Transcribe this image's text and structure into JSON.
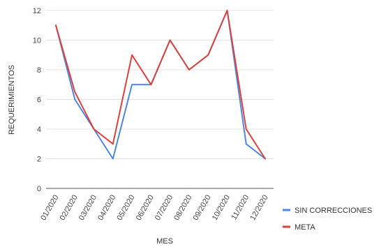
{
  "chart_data": {
    "type": "line",
    "title": "",
    "xlabel": "MES",
    "ylabel": "REQUERIMIENTOS",
    "ylim": [
      0,
      12
    ],
    "yticks": [
      0,
      2,
      4,
      6,
      8,
      10,
      12
    ],
    "grid": true,
    "legend_position": "bottom-right",
    "categories": [
      "01/2020",
      "02/2020",
      "03/2020",
      "04/2020",
      "05/2020",
      "06/2020",
      "07/2020",
      "08/2020",
      "09/2020",
      "10/2020",
      "11/2020",
      "12/2020"
    ],
    "series": [
      {
        "name": "SIN CORRECCIONES",
        "color": "#4a86e8",
        "values": [
          11,
          6,
          4,
          2,
          7,
          7,
          10,
          8,
          9,
          12,
          3,
          2
        ]
      },
      {
        "name": "META",
        "color": "#e0403a",
        "values": [
          11,
          6.5,
          4,
          3,
          9,
          7,
          10,
          8,
          9,
          12,
          4,
          2
        ]
      }
    ]
  }
}
